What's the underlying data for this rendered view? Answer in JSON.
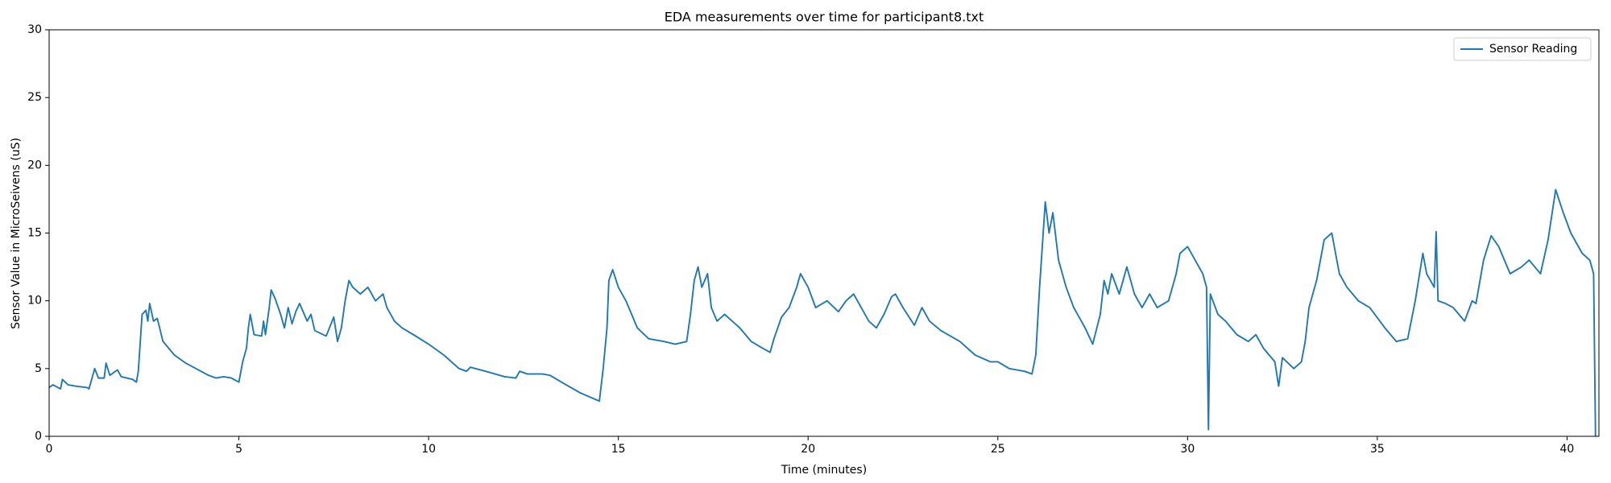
{
  "chart_data": {
    "type": "line",
    "title": "EDA measurements over time for participant8.txt",
    "xlabel": "Time (minutes)",
    "ylabel": "Sensor Value in MicroSeivens (uS)",
    "xlim": [
      0,
      40.84
    ],
    "ylim": [
      0,
      30
    ],
    "xticks": [
      0,
      5,
      10,
      15,
      20,
      25,
      30,
      35,
      40
    ],
    "yticks": [
      0,
      5,
      10,
      15,
      20,
      25,
      30
    ],
    "grid": false,
    "legend": "upper right",
    "series": [
      {
        "name": "Sensor Reading",
        "color": "#1f77b4",
        "x": [
          0,
          0.1,
          0.3,
          0.35,
          0.5,
          0.7,
          1.0,
          1.05,
          1.2,
          1.3,
          1.45,
          1.5,
          1.6,
          1.8,
          1.9,
          2.2,
          2.3,
          2.35,
          2.45,
          2.55,
          2.6,
          2.65,
          2.75,
          2.85,
          3.0,
          3.3,
          3.6,
          4.0,
          4.2,
          4.4,
          4.6,
          4.8,
          5.0,
          5.1,
          5.2,
          5.25,
          5.3,
          5.4,
          5.6,
          5.65,
          5.7,
          5.8,
          5.85,
          5.95,
          6.1,
          6.2,
          6.3,
          6.4,
          6.5,
          6.6,
          6.8,
          6.9,
          7.0,
          7.3,
          7.5,
          7.6,
          7.7,
          7.8,
          7.9,
          8.0,
          8.2,
          8.4,
          8.6,
          8.8,
          8.9,
          9.1,
          9.3,
          9.6,
          10.0,
          10.4,
          10.8,
          11.0,
          11.1,
          11.5,
          12.0,
          12.3,
          12.4,
          12.6,
          13.0,
          13.2,
          13.5,
          14.0,
          14.5,
          14.6,
          14.7,
          14.75,
          14.85,
          15.0,
          15.2,
          15.5,
          15.8,
          16.2,
          16.5,
          16.8,
          16.9,
          17.0,
          17.1,
          17.2,
          17.35,
          17.45,
          17.6,
          17.8,
          18.0,
          18.2,
          18.5,
          18.8,
          19.0,
          19.1,
          19.3,
          19.5,
          19.7,
          19.8,
          20.0,
          20.2,
          20.5,
          20.8,
          21.0,
          21.2,
          21.4,
          21.6,
          21.8,
          22.0,
          22.2,
          22.3,
          22.5,
          22.8,
          23.0,
          23.2,
          23.5,
          24.0,
          24.4,
          24.8,
          25.0,
          25.3,
          25.7,
          25.9,
          26.0,
          26.1,
          26.25,
          26.35,
          26.45,
          26.6,
          26.8,
          27.0,
          27.3,
          27.5,
          27.7,
          27.8,
          27.9,
          28.0,
          28.2,
          28.4,
          28.6,
          28.8,
          29.0,
          29.2,
          29.5,
          29.7,
          29.8,
          30.0,
          30.2,
          30.4,
          30.5,
          30.55,
          30.6,
          30.8,
          31.0,
          31.3,
          31.6,
          31.8,
          32.0,
          32.3,
          32.4,
          32.5,
          32.8,
          33.0,
          33.1,
          33.2,
          33.4,
          33.6,
          33.8,
          34.0,
          34.2,
          34.5,
          34.8,
          35.2,
          35.5,
          35.8,
          36.0,
          36.2,
          36.3,
          36.5,
          36.55,
          36.6,
          36.8,
          37.0,
          37.3,
          37.5,
          37.6,
          37.8,
          38.0,
          38.2,
          38.5,
          38.8,
          39.0,
          39.3,
          39.5,
          39.7,
          39.9,
          40.1,
          40.4,
          40.6,
          40.7,
          40.75
        ],
        "values": [
          3.6,
          3.8,
          3.5,
          4.2,
          3.8,
          3.7,
          3.6,
          3.5,
          5.0,
          4.3,
          4.3,
          5.4,
          4.5,
          4.9,
          4.4,
          4.2,
          4.0,
          4.8,
          9.0,
          9.3,
          8.5,
          9.8,
          8.5,
          8.7,
          7.0,
          6.0,
          5.4,
          4.8,
          4.5,
          4.3,
          4.4,
          4.3,
          4.0,
          5.5,
          6.5,
          8.0,
          9.0,
          7.5,
          7.4,
          8.5,
          7.5,
          9.5,
          10.8,
          10.2,
          9.0,
          8.0,
          9.5,
          8.3,
          9.2,
          9.8,
          8.5,
          9.0,
          7.8,
          7.4,
          8.8,
          7.0,
          8.0,
          10.0,
          11.5,
          11.0,
          10.5,
          11.0,
          10.0,
          10.5,
          9.5,
          8.5,
          8.0,
          7.5,
          6.8,
          6.0,
          5.0,
          4.8,
          5.1,
          4.8,
          4.4,
          4.3,
          4.8,
          4.6,
          4.6,
          4.5,
          4.0,
          3.2,
          2.6,
          5.0,
          8.0,
          11.5,
          12.3,
          11.0,
          10.0,
          8.0,
          7.2,
          7.0,
          6.8,
          7.0,
          9.0,
          11.5,
          12.5,
          11.0,
          12.0,
          9.5,
          8.5,
          9.0,
          8.5,
          8.0,
          7.0,
          6.5,
          6.2,
          7.2,
          8.8,
          9.5,
          11.0,
          12.0,
          11.0,
          9.5,
          10.0,
          9.2,
          10.0,
          10.5,
          9.5,
          8.5,
          8.0,
          9.0,
          10.3,
          10.5,
          9.5,
          8.2,
          9.5,
          8.5,
          7.8,
          7.0,
          6.0,
          5.5,
          5.5,
          5.0,
          4.8,
          4.6,
          6.0,
          11.0,
          17.3,
          15.0,
          16.5,
          13.0,
          11.0,
          9.5,
          8.0,
          6.8,
          9.0,
          11.5,
          10.5,
          12.0,
          10.5,
          12.5,
          10.5,
          9.5,
          10.5,
          9.5,
          10.0,
          12.0,
          13.5,
          14.0,
          13.0,
          12.0,
          11.0,
          0.5,
          10.5,
          9.0,
          8.5,
          7.5,
          7.0,
          7.5,
          6.5,
          5.5,
          3.7,
          5.8,
          5.0,
          5.5,
          7.0,
          9.5,
          11.5,
          14.5,
          15.0,
          12.0,
          11.0,
          10.0,
          9.5,
          8.0,
          7.0,
          7.2,
          10.0,
          13.5,
          12.0,
          11.0,
          15.1,
          10.0,
          9.8,
          9.5,
          8.5,
          10.0,
          9.8,
          13.0,
          14.8,
          14.0,
          12.0,
          12.5,
          13.0,
          12.0,
          14.5,
          18.2,
          16.5,
          15.0,
          13.5,
          13.0,
          12.0,
          0
        ]
      }
    ]
  }
}
